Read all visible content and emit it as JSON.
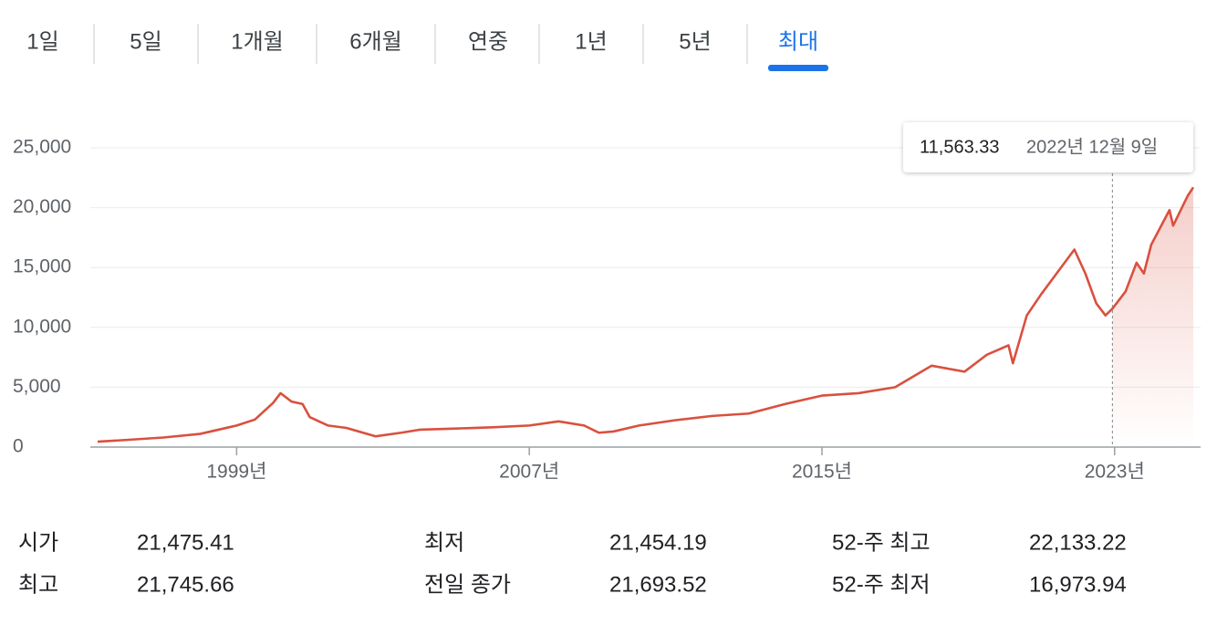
{
  "tabs": {
    "items": [
      "1일",
      "5일",
      "1개월",
      "6개월",
      "연중",
      "1년",
      "5년",
      "최대"
    ],
    "active": 7
  },
  "chart_data": {
    "type": "line",
    "x": [
      1995.2,
      1996,
      1997,
      1998,
      1999,
      1999.5,
      2000.0,
      2000.2,
      2000.5,
      2000.8,
      2001.0,
      2001.5,
      2002.0,
      2002.8,
      2003.5,
      2004,
      2005,
      2006,
      2007,
      2007.8,
      2008.5,
      2008.9,
      2009.3,
      2010,
      2011,
      2012,
      2013,
      2014,
      2015,
      2016,
      2017,
      2018,
      2018.9,
      2019.5,
      2020.1,
      2020.22,
      2020.6,
      2021,
      2021.9,
      2022.2,
      2022.5,
      2022.75,
      2022.94,
      2023.3,
      2023.6,
      2023.8,
      2024.0,
      2024.5,
      2024.6,
      2025.0,
      2025.15
    ],
    "series": [
      {
        "color": "#d9503f",
        "values": [
          450,
          600,
          800,
          1100,
          1800,
          2300,
          3700,
          4500,
          3800,
          3600,
          2500,
          1800,
          1600,
          900,
          1200,
          1450,
          1550,
          1650,
          1800,
          2150,
          1800,
          1200,
          1300,
          1800,
          2250,
          2600,
          2800,
          3600,
          4300,
          4500,
          5000,
          6800,
          6300,
          7700,
          8500,
          7000,
          11000,
          12800,
          16500,
          14500,
          12000,
          11000,
          11563.33,
          13000,
          15400,
          14500,
          16900,
          19800,
          18500,
          21000,
          21700
        ]
      }
    ],
    "xlim": [
      1995,
      2025.35
    ],
    "xticks": [
      {
        "value": 1999,
        "label": "1999년"
      },
      {
        "value": 2007,
        "label": "2007년"
      },
      {
        "value": 2015,
        "label": "2015년"
      },
      {
        "value": 2023,
        "label": "2023년"
      }
    ],
    "ylim": [
      0,
      25000
    ],
    "yticks": [
      {
        "value": 0,
        "label": "0"
      },
      {
        "value": 5000,
        "label": "5,000"
      },
      {
        "value": 10000,
        "label": "10,000"
      },
      {
        "value": 15000,
        "label": "15,000"
      },
      {
        "value": 20000,
        "label": "20,000"
      },
      {
        "value": 25000,
        "label": "25,000"
      }
    ],
    "grid": true,
    "tooltip": {
      "x": 2022.94,
      "value": 11563.33,
      "label": "11,563.33",
      "date": "2022년 12월 9일"
    }
  },
  "stats": {
    "rows": [
      [
        "시가",
        "21,475.41",
        "최저",
        "21,454.19",
        "52-주 최고",
        "22,133.22"
      ],
      [
        "최고",
        "21,745.66",
        "전일 종가",
        "21,693.52",
        "52-주 최저",
        "16,973.94"
      ]
    ]
  }
}
